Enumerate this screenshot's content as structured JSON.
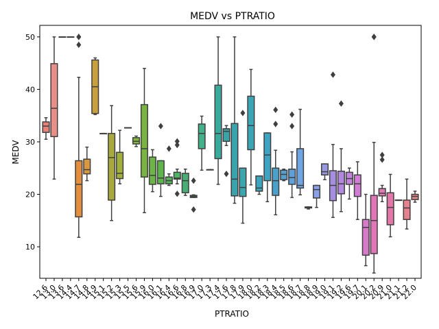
{
  "chart_data": {
    "type": "box",
    "title": "MEDV vs PTRATIO",
    "xlabel": "PTRATIO",
    "ylabel": "MEDV",
    "ylim": [
      4,
      52.2
    ],
    "yticks": [
      10,
      20,
      30,
      40,
      50
    ],
    "grid": false,
    "legend": "none",
    "categories": [
      "12.6",
      "13.0",
      "13.6",
      "14.4",
      "14.7",
      "14.8",
      "14.9",
      "15.1",
      "15.2",
      "15.3",
      "15.5",
      "15.6",
      "15.9",
      "16.0",
      "16.1",
      "16.4",
      "16.6",
      "16.8",
      "16.9",
      "17.0",
      "17.3",
      "17.4",
      "17.6",
      "17.8",
      "17.9",
      "18.0",
      "18.2",
      "18.3",
      "18.4",
      "18.5",
      "18.6",
      "18.7",
      "18.8",
      "18.9",
      "19.0",
      "19.1",
      "19.2",
      "19.6",
      "19.7",
      "20.1",
      "20.2",
      "20.9",
      "21.0",
      "21.1",
      "21.2",
      "22.0"
    ],
    "boxes": [
      {
        "whislo": 30.5,
        "q1": 31.8,
        "med": 33.0,
        "q3": 33.8,
        "whishi": 34.6,
        "fliers": []
      },
      {
        "whislo": 22.9,
        "q1": 31.0,
        "med": 36.4,
        "q3": 44.9,
        "whishi": 50.0,
        "fliers": []
      },
      {
        "whislo": 50.0,
        "q1": 50.0,
        "med": 50.0,
        "q3": 50.0,
        "whishi": 50.0,
        "fliers": []
      },
      {
        "whislo": 50.0,
        "q1": 50.0,
        "med": 50.0,
        "q3": 50.0,
        "whishi": 50.0,
        "fliers": []
      },
      {
        "whislo": 11.8,
        "q1": 15.7,
        "med": 21.9,
        "q3": 26.4,
        "whishi": 42.3,
        "fliers": [
          48.5,
          50.0,
          50.0
        ]
      },
      {
        "whislo": 22.6,
        "q1": 23.9,
        "med": 24.7,
        "q3": 26.7,
        "whishi": 29.0,
        "fliers": []
      },
      {
        "whislo": 35.2,
        "q1": 35.4,
        "med": 40.5,
        "q3": 45.6,
        "whishi": 46.0,
        "fliers": []
      },
      {
        "whislo": 31.6,
        "q1": 31.6,
        "med": 31.6,
        "q3": 31.6,
        "whishi": 31.6,
        "fliers": []
      },
      {
        "whislo": 15.0,
        "q1": 18.9,
        "med": 27.0,
        "q3": 31.6,
        "whishi": 36.9,
        "fliers": []
      },
      {
        "whislo": 22.0,
        "q1": 23.0,
        "med": 24.0,
        "q3": 28.0,
        "whishi": 32.2,
        "fliers": []
      },
      {
        "whislo": 32.7,
        "q1": 32.7,
        "med": 32.7,
        "q3": 32.7,
        "whishi": 32.7,
        "fliers": []
      },
      {
        "whislo": 29.1,
        "q1": 29.6,
        "med": 30.1,
        "q3": 30.8,
        "whishi": 31.1,
        "fliers": []
      },
      {
        "whislo": 16.5,
        "q1": 23.3,
        "med": 28.7,
        "q3": 37.1,
        "whishi": 44.0,
        "fliers": []
      },
      {
        "whislo": 20.5,
        "q1": 21.9,
        "med": 23.6,
        "q3": 27.1,
        "whishi": 28.5,
        "fliers": []
      },
      {
        "whislo": 19.6,
        "q1": 22.0,
        "med": 23.1,
        "q3": 26.4,
        "whishi": 26.4,
        "fliers": [
          33.0
        ]
      },
      {
        "whislo": 21.7,
        "q1": 22.0,
        "med": 22.6,
        "q3": 23.3,
        "whishi": 23.9,
        "fliers": [
          28.7
        ]
      },
      {
        "whislo": 22.0,
        "q1": 22.9,
        "med": 23.1,
        "q3": 24.2,
        "whishi": 24.8,
        "fliers": [
          20.1,
          29.4,
          30.1
        ]
      },
      {
        "whislo": 19.8,
        "q1": 20.3,
        "med": 22.6,
        "q3": 24.0,
        "whishi": 24.8,
        "fliers": []
      },
      {
        "whislo": 19.4,
        "q1": 19.4,
        "med": 19.6,
        "q3": 19.8,
        "whishi": 19.9,
        "fliers": [
          22.6,
          17.1
        ]
      },
      {
        "whislo": 24.6,
        "q1": 28.7,
        "med": 31.6,
        "q3": 33.4,
        "whishi": 34.9,
        "fliers": []
      },
      {
        "whislo": 24.7,
        "q1": 24.7,
        "med": 24.7,
        "q3": 24.7,
        "whishi": 24.7,
        "fliers": []
      },
      {
        "whislo": 21.9,
        "q1": 26.8,
        "med": 31.6,
        "q3": 40.8,
        "whishi": 50.0,
        "fliers": []
      },
      {
        "whislo": 29.3,
        "q1": 30.1,
        "med": 32.0,
        "q3": 32.5,
        "whishi": 33.1,
        "fliers": [
          23.9
        ]
      },
      {
        "whislo": 18.3,
        "q1": 19.7,
        "med": 22.9,
        "q3": 33.5,
        "whishi": 50.0,
        "fliers": []
      },
      {
        "whislo": 14.5,
        "q1": 19.6,
        "med": 21.3,
        "q3": 25.0,
        "whishi": 25.0,
        "fliers": [
          35.5
        ]
      },
      {
        "whislo": 21.8,
        "q1": 28.5,
        "med": 33.1,
        "q3": 38.7,
        "whishi": 43.8,
        "fliers": []
      },
      {
        "whislo": 20.0,
        "q1": 20.6,
        "med": 21.2,
        "q3": 23.5,
        "whishi": 23.5,
        "fliers": []
      },
      {
        "whislo": 18.6,
        "q1": 22.6,
        "med": 27.5,
        "q3": 31.7,
        "whishi": 31.7,
        "fliers": []
      },
      {
        "whislo": 16.1,
        "q1": 19.8,
        "med": 22.6,
        "q3": 25.0,
        "whishi": 28.4,
        "fliers": [
          36.1,
          33.4
        ]
      },
      {
        "whislo": 22.6,
        "q1": 22.8,
        "med": 23.8,
        "q3": 24.6,
        "whishi": 24.8,
        "fliers": []
      },
      {
        "whislo": 19.4,
        "q1": 21.9,
        "med": 23.2,
        "q3": 24.8,
        "whishi": 28.1,
        "fliers": [
          35.2,
          33.0
        ]
      },
      {
        "whislo": 19.9,
        "q1": 21.2,
        "med": 21.7,
        "q3": 28.7,
        "whishi": 36.2,
        "fliers": []
      },
      {
        "whislo": 17.2,
        "q1": 17.4,
        "med": 17.5,
        "q3": 17.6,
        "whishi": 17.6,
        "fliers": []
      },
      {
        "whislo": 17.5,
        "q1": 19.3,
        "med": 20.9,
        "q3": 21.7,
        "whishi": 21.7,
        "fliers": []
      },
      {
        "whislo": 22.8,
        "q1": 23.7,
        "med": 24.3,
        "q3": 25.8,
        "whishi": 25.8,
        "fliers": []
      },
      {
        "whislo": 15.6,
        "q1": 18.8,
        "med": 21.7,
        "q3": 24.5,
        "whishi": 29.5,
        "fliers": [
          42.8
        ]
      },
      {
        "whislo": 16.7,
        "q1": 20.1,
        "med": 22.0,
        "q3": 24.4,
        "whishi": 28.7,
        "fliers": [
          37.3
        ]
      },
      {
        "whislo": 19.1,
        "q1": 21.9,
        "med": 23.0,
        "q3": 24.2,
        "whishi": 25.0,
        "fliers": []
      },
      {
        "whislo": 15.2,
        "q1": 19.6,
        "med": 22.0,
        "q3": 23.7,
        "whishi": 26.2,
        "fliers": []
      },
      {
        "whislo": 6.4,
        "q1": 8.4,
        "med": 13.7,
        "q3": 15.2,
        "whishi": 20.0,
        "fliers": []
      },
      {
        "whislo": 5.0,
        "q1": 8.7,
        "med": 15.0,
        "q3": 19.8,
        "whishi": 29.9,
        "fliers": [
          50.0,
          50.0
        ]
      },
      {
        "whislo": 18.6,
        "q1": 19.7,
        "med": 20.2,
        "q3": 21.1,
        "whishi": 21.7,
        "fliers": [
          26.6,
          27.5
        ]
      },
      {
        "whislo": 11.9,
        "q1": 14.2,
        "med": 17.5,
        "q3": 20.3,
        "whishi": 23.8,
        "fliers": []
      },
      {
        "whislo": 18.9,
        "q1": 18.9,
        "med": 18.9,
        "q3": 18.9,
        "whishi": 18.9,
        "fliers": []
      },
      {
        "whislo": 13.4,
        "q1": 15.2,
        "med": 17.4,
        "q3": 18.9,
        "whishi": 22.9,
        "fliers": []
      },
      {
        "whislo": 18.5,
        "q1": 19.0,
        "med": 19.6,
        "q3": 20.0,
        "whishi": 20.6,
        "fliers": []
      }
    ],
    "colors": [
      "#e98077",
      "#ea8f87",
      "#d19c3a",
      "#c7a33a",
      "#e38f3d",
      "#d99a3f",
      "#c9a03e",
      "#b7a83e",
      "#a8aa3d",
      "#a0b03a",
      "#92b43a",
      "#82b83c",
      "#79b442",
      "#6cb447",
      "#5eb64b",
      "#56b55b",
      "#4cb662",
      "#4aad73",
      "#3fb07d",
      "#43b08a",
      "#3faf93",
      "#3aaa9c",
      "#3aa3a7",
      "#3ba3ac",
      "#3ca5ae",
      "#3ca6b6",
      "#3ca6bf",
      "#3ea4c4",
      "#4aa2cb",
      "#55a0d0",
      "#60a0d8",
      "#6fa5e2",
      "#7ba5e5",
      "#8a9fe6",
      "#9897e0",
      "#a68fe0",
      "#b389e0",
      "#c284de",
      "#d07dd6",
      "#d77ac8",
      "#e076b8",
      "#df7bb1",
      "#e477a8",
      "#e47c9b",
      "#e7808f",
      "#e68487"
    ]
  }
}
